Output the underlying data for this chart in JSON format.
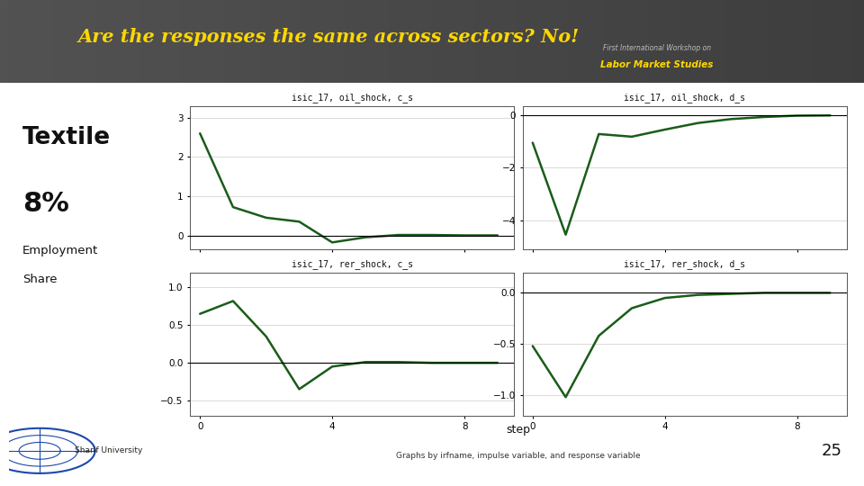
{
  "title": "Are the responses the same across sectors? No!",
  "title_color": "#FFD700",
  "slide_bg": "#ffffff",
  "header_bg_left": "#4a4a4a",
  "header_bg_right": "#2a2a2a",
  "left_label_line1": "Textile",
  "left_label_line2": "8%",
  "left_label_line3": "Employment",
  "left_label_line4": "Share",
  "bottom_label": "step",
  "bottom_note": "Graphs by irfname, impulse variable, and response variable",
  "page_num": "25",
  "panel_title_bg": "#d4c98a",
  "panel_bg": "#ffffff",
  "line_color": "#1a5c1a",
  "panels": [
    {
      "title": "isic_17, oil_shock, c_s",
      "x": [
        0,
        1,
        2,
        3,
        4,
        5,
        6,
        7,
        8,
        9
      ],
      "y": [
        2.6,
        0.72,
        0.45,
        0.35,
        -0.18,
        -0.05,
        0.01,
        0.01,
        0.0,
        0.0
      ],
      "ylim": [
        -0.35,
        3.3
      ],
      "yticks": [
        0,
        1,
        2,
        3
      ],
      "xticks": [
        0,
        4,
        8
      ],
      "show_xtick_labels": false
    },
    {
      "title": "isic_17, oil_shock, d_s",
      "x": [
        0,
        1,
        2,
        3,
        4,
        5,
        6,
        7,
        8,
        9
      ],
      "y": [
        -1.05,
        -4.55,
        -0.72,
        -0.82,
        -0.55,
        -0.3,
        -0.15,
        -0.07,
        -0.02,
        -0.01
      ],
      "ylim": [
        -5.1,
        0.35
      ],
      "yticks": [
        0,
        -2,
        -4
      ],
      "xticks": [
        0,
        4,
        8
      ],
      "show_xtick_labels": false
    },
    {
      "title": "isic_17, rer_shock, c_s",
      "x": [
        0,
        1,
        2,
        3,
        4,
        5,
        6,
        7,
        8,
        9
      ],
      "y": [
        0.65,
        0.82,
        0.35,
        -0.35,
        -0.05,
        0.01,
        0.01,
        0.0,
        0.0,
        0.0
      ],
      "ylim": [
        -0.7,
        1.2
      ],
      "yticks": [
        -0.5,
        0,
        0.5,
        1
      ],
      "xticks": [
        0,
        4,
        8
      ],
      "show_xtick_labels": true
    },
    {
      "title": "isic_17, rer_shock, d_s",
      "x": [
        0,
        1,
        2,
        3,
        4,
        5,
        6,
        7,
        8,
        9
      ],
      "y": [
        -0.52,
        -1.02,
        -0.42,
        -0.15,
        -0.05,
        -0.02,
        -0.01,
        0.0,
        0.0,
        0.0
      ],
      "ylim": [
        -1.2,
        0.2
      ],
      "yticks": [
        -1,
        -0.5,
        0
      ],
      "xticks": [
        0,
        4,
        8
      ],
      "show_xtick_labels": true
    }
  ]
}
